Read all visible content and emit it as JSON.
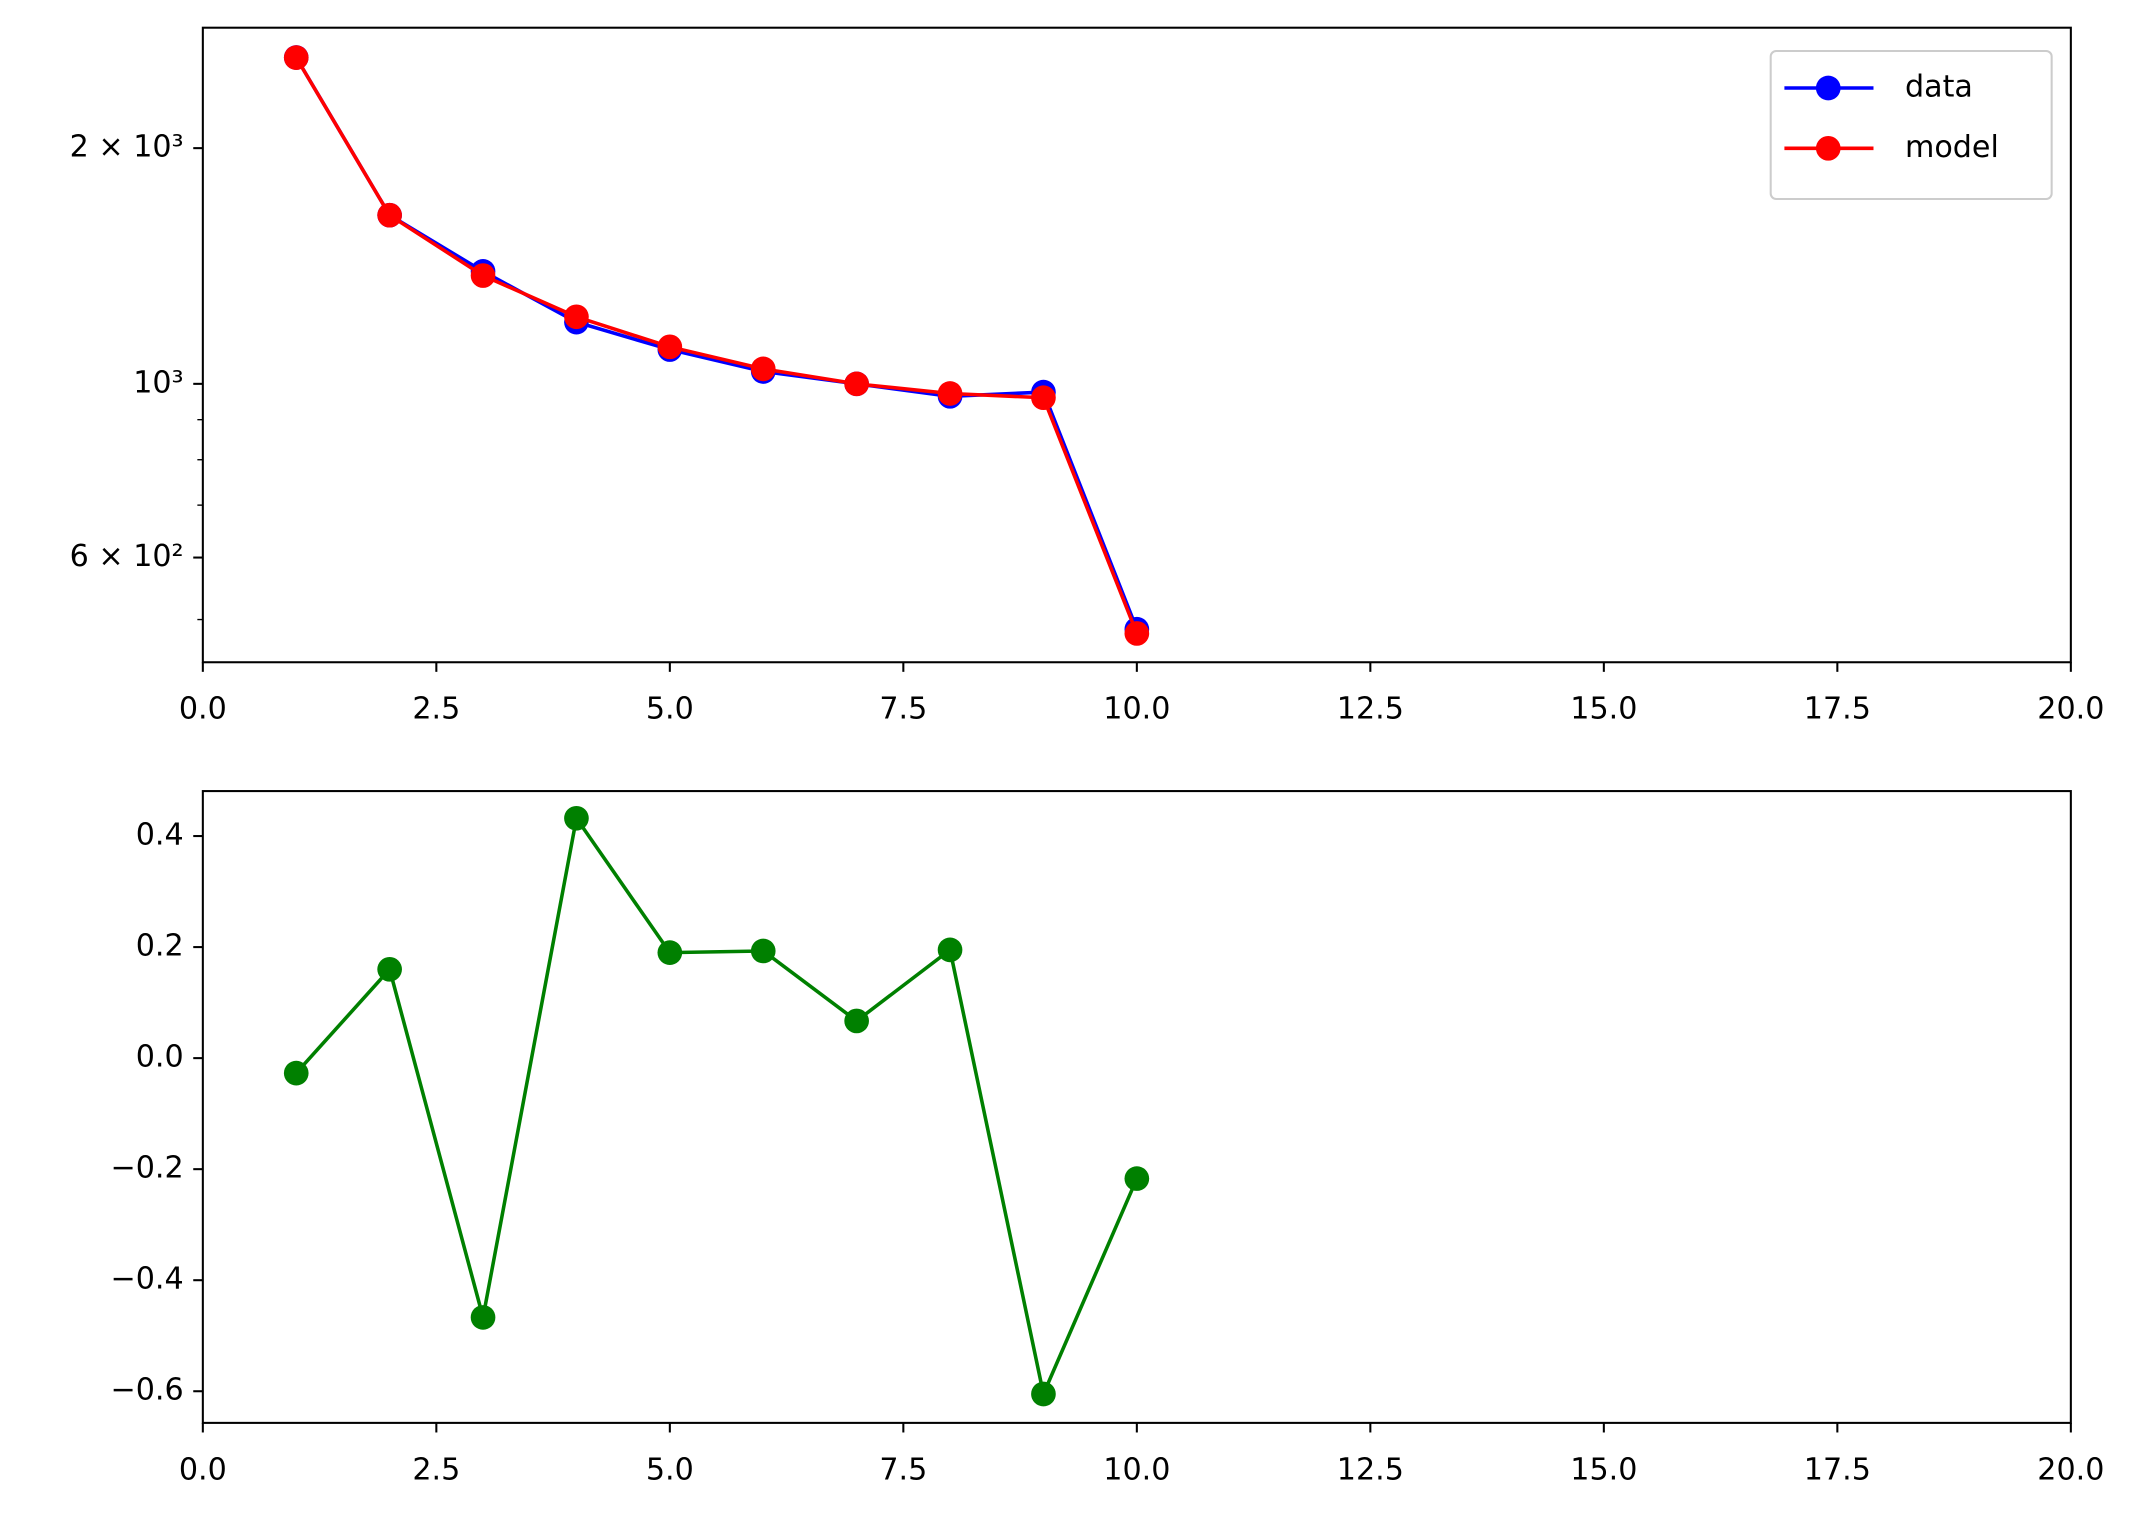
{
  "chart_data": [
    {
      "type": "line",
      "log_y": true,
      "x": [
        1,
        2,
        3,
        4,
        5,
        6,
        7,
        8,
        9,
        10
      ],
      "series": [
        {
          "name": "data",
          "color": "#0000ff",
          "values": [
            2611,
            1642,
            1392,
            1199,
            1106,
            1037,
            1000,
            964,
            976,
            486
          ]
        },
        {
          "name": "model",
          "color": "#ff0000",
          "values": [
            2610,
            1642,
            1375,
            1218,
            1115,
            1045,
            1000,
            972,
            960,
            480
          ]
        }
      ],
      "xlim": [
        0,
        20
      ],
      "xticks": [
        {
          "value": 0,
          "label": "0.0"
        },
        {
          "value": 2.5,
          "label": "2.5"
        },
        {
          "value": 5,
          "label": "5.0"
        },
        {
          "value": 7.5,
          "label": "7.5"
        },
        {
          "value": 10,
          "label": "10.0"
        },
        {
          "value": 12.5,
          "label": "12.5"
        },
        {
          "value": 15,
          "label": "15.0"
        },
        {
          "value": 17.5,
          "label": "17.5"
        },
        {
          "value": 20,
          "label": "20.0"
        }
      ],
      "ylim": [
        441,
        2850
      ],
      "yticks": [
        {
          "value": 600,
          "label": "6 × 10²"
        },
        {
          "value": 1000,
          "label": "10³"
        },
        {
          "value": 2000,
          "label": "2 × 10³"
        }
      ],
      "yminor_ticks": [
        500,
        700,
        800,
        900
      ],
      "legend": "upper right"
    },
    {
      "type": "line",
      "x": [
        1,
        2,
        3,
        4,
        5,
        6,
        7,
        8,
        9,
        10
      ],
      "series": [
        {
          "color": "#008000",
          "values": [
            -0.027,
            0.16,
            -0.467,
            0.432,
            0.19,
            0.193,
            0.067,
            0.195,
            -0.605,
            -0.217
          ]
        }
      ],
      "xlim": [
        0,
        20
      ],
      "xticks": [
        {
          "value": 0,
          "label": "0.0"
        },
        {
          "value": 2.5,
          "label": "2.5"
        },
        {
          "value": 5,
          "label": "5.0"
        },
        {
          "value": 7.5,
          "label": "7.5"
        },
        {
          "value": 10,
          "label": "10.0"
        },
        {
          "value": 12.5,
          "label": "12.5"
        },
        {
          "value": 15,
          "label": "15.0"
        },
        {
          "value": 17.5,
          "label": "17.5"
        },
        {
          "value": 20,
          "label": "20.0"
        }
      ],
      "ylim": [
        -0.657,
        0.481
      ],
      "yticks": [
        {
          "value": -0.6,
          "label": "−0.6"
        },
        {
          "value": -0.4,
          "label": "−0.4"
        },
        {
          "value": -0.2,
          "label": "−0.2"
        },
        {
          "value": 0,
          "label": "0.0"
        },
        {
          "value": 0.2,
          "label": "0.2"
        },
        {
          "value": 0.4,
          "label": "0.4"
        }
      ]
    }
  ]
}
